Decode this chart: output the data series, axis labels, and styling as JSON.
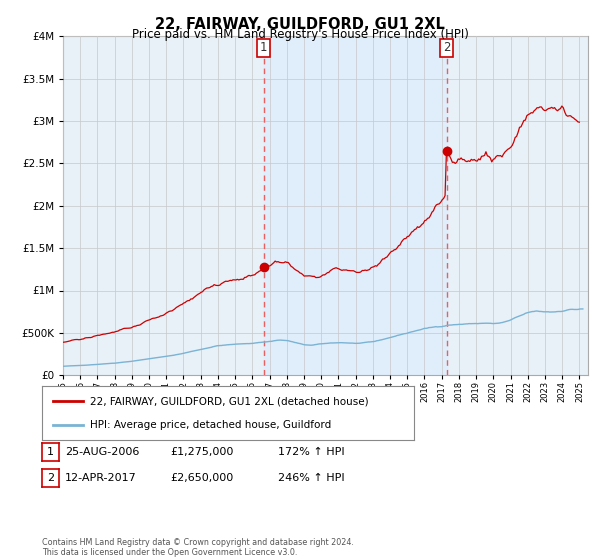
{
  "title": "22, FAIRWAY, GUILDFORD, GU1 2XL",
  "subtitle": "Price paid vs. HM Land Registry's House Price Index (HPI)",
  "legend_line1": "22, FAIRWAY, GUILDFORD, GU1 2XL (detached house)",
  "legend_line2": "HPI: Average price, detached house, Guildford",
  "footnote": "Contains HM Land Registry data © Crown copyright and database right 2024.\nThis data is licensed under the Open Government Licence v3.0.",
  "transaction1_label": "1",
  "transaction1_date": "25-AUG-2006",
  "transaction1_price": "£1,275,000",
  "transaction1_hpi": "172% ↑ HPI",
  "transaction1_year": 2006.65,
  "transaction1_value": 1275000,
  "transaction2_label": "2",
  "transaction2_date": "12-APR-2017",
  "transaction2_price": "£2,650,000",
  "transaction2_hpi": "246% ↑ HPI",
  "transaction2_year": 2017.28,
  "transaction2_value": 2650000,
  "red_color": "#cc0000",
  "blue_color": "#7ab3d4",
  "dashed_color": "#e86060",
  "shade_color": "#ddeeff",
  "plot_bg": "#e8f0f8",
  "grid_color": "#c8c8c8",
  "ylim_min": 0,
  "ylim_max": 4000000,
  "xlim_min": 1995.0,
  "xlim_max": 2025.5
}
